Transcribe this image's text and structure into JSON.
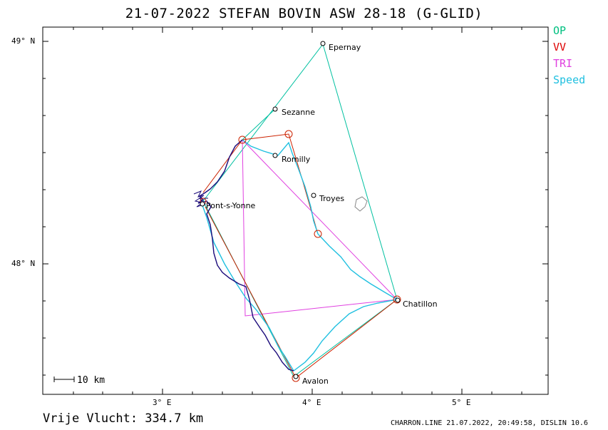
{
  "title": "21-07-2022   STEFAN BOVIN   ASW 28-18 (G-GLID)",
  "legend": [
    {
      "label": "OP",
      "color": "#00c080"
    },
    {
      "label": "VV",
      "color": "#dd0000"
    },
    {
      "label": "TRI",
      "color": "#e040e0"
    },
    {
      "label": "Speed",
      "color": "#20c0e0"
    }
  ],
  "axes": {
    "lat_labels": [
      "49° N",
      "48° N"
    ],
    "lon_labels": [
      "3° E",
      "4° E",
      "5° E"
    ]
  },
  "places": [
    "Epernay",
    "Sezanne",
    "Romilly",
    "Troyes",
    "Pont-s-Yonne",
    "Chatillon",
    "Avalon"
  ],
  "scale": {
    "label": "10 km"
  },
  "footer": {
    "distance": "Vrije Vlucht:  334.7 km",
    "credit": "CHARRON.LINE 21.07.2022, 20:49:58, DISLIN 10.6"
  },
  "colors": {
    "track": "#1a0a7a",
    "speed": "#20c0e0",
    "op": "#00c0a0",
    "vv": "#cc2200",
    "tri": "#e040e0"
  }
}
